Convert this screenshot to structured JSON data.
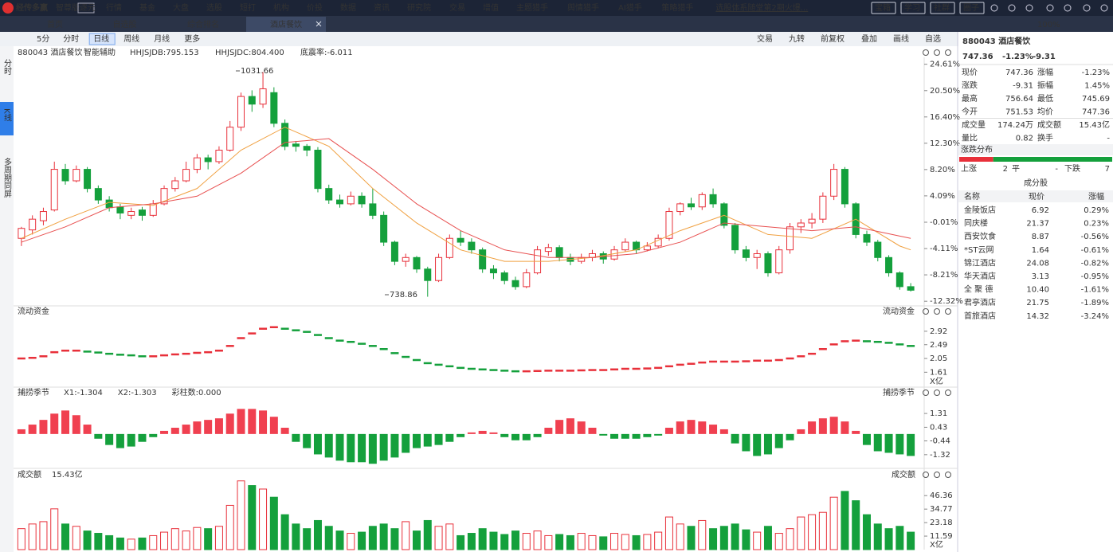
{
  "header": {
    "logo": "经传多赢",
    "edition": "智尊版",
    "badge": "逐元",
    "menu": [
      "行情",
      "基金",
      "大盘",
      "选股",
      "短打",
      "机构",
      "价投",
      "数据",
      "资讯",
      "研究院",
      "交易",
      "增值",
      "主题猎手",
      "舆情猎手",
      "AI猎手",
      "策略猎手"
    ],
    "promo": "选股体系随堂第2期火爆...",
    "buttons": [
      "宝箱",
      "学习",
      "社群",
      "圈子"
    ]
  },
  "tabs": {
    "items": [
      "首页",
      "自选股",
      "综合排名",
      "酒店餐饮"
    ],
    "active": 3,
    "zoom": "100%"
  },
  "toolbar": {
    "periods": [
      "5分",
      "分时",
      "日线",
      "周线",
      "月线",
      "更多"
    ],
    "active": 2,
    "tools": [
      "交易",
      "九转",
      "前复权",
      "叠加",
      "画线",
      "自选"
    ]
  },
  "side_tabs": {
    "items": [
      "分时",
      "K线",
      "多周期同屏"
    ],
    "active": 1
  },
  "chart_data": [
    {
      "type": "candlestick",
      "title": "880043 酒店餐饮",
      "indicators": [
        "智能辅助",
        "HHJSJDB:795.153",
        "HHJSJDC:804.400",
        "底震率:-6.011"
      ],
      "indicator_colors": [
        "#666666",
        "#e0a020",
        "#e84040",
        "#e0a020"
      ],
      "annotations": [
        "1031.66",
        "738.86"
      ],
      "up_color": "#e8303a",
      "down_color": "#14a03c",
      "ylim": [
        728,
        1051
      ],
      "yticks": [
        {
          "value": 1042,
          "label": "24.61%"
        },
        {
          "value": 1007.6,
          "label": "20.50%"
        },
        {
          "value": 973.3,
          "label": "16.40%"
        },
        {
          "value": 939,
          "label": "12.30%"
        },
        {
          "value": 904.7,
          "label": "8.20%"
        },
        {
          "value": 870.4,
          "label": "4.09%"
        },
        {
          "value": 836,
          "label": "-0.01%"
        },
        {
          "value": 801.7,
          "label": "-4.11%"
        },
        {
          "value": 767.4,
          "label": "-8.21%"
        },
        {
          "value": 733,
          "label": "-12.32%"
        }
      ],
      "candles": [
        [
          815,
          830,
          805,
          828
        ],
        [
          826,
          845,
          820,
          840
        ],
        [
          838,
          855,
          832,
          850
        ],
        [
          852,
          915,
          850,
          905
        ],
        [
          905,
          912,
          885,
          890
        ],
        [
          890,
          910,
          888,
          905
        ],
        [
          905,
          908,
          875,
          880
        ],
        [
          880,
          884,
          860,
          865
        ],
        [
          865,
          870,
          850,
          855
        ],
        [
          856,
          860,
          840,
          848
        ],
        [
          845,
          855,
          840,
          850
        ],
        [
          852,
          856,
          838,
          845
        ],
        [
          845,
          865,
          843,
          860
        ],
        [
          860,
          884,
          858,
          880
        ],
        [
          880,
          895,
          876,
          890
        ],
        [
          890,
          915,
          888,
          905
        ],
        [
          905,
          925,
          900,
          920
        ],
        [
          920,
          924,
          905,
          915
        ],
        [
          915,
          935,
          912,
          930
        ],
        [
          930,
          968,
          928,
          960
        ],
        [
          960,
          1005,
          955,
          1000
        ],
        [
          1000,
          1008,
          980,
          990
        ],
        [
          990,
          1031.66,
          985,
          1010
        ],
        [
          1005,
          1012,
          960,
          965
        ],
        [
          965,
          970,
          930,
          935
        ],
        [
          938,
          942,
          928,
          935
        ],
        [
          935,
          938,
          922,
          930
        ],
        [
          930,
          934,
          875,
          880
        ],
        [
          880,
          885,
          860,
          865
        ],
        [
          865,
          872,
          855,
          860
        ],
        [
          860,
          876,
          858,
          870
        ],
        [
          870,
          875,
          855,
          860
        ],
        [
          860,
          880,
          840,
          845
        ],
        [
          845,
          850,
          805,
          810
        ],
        [
          810,
          812,
          780,
          785
        ],
        [
          785,
          795,
          778,
          790
        ],
        [
          790,
          792,
          770,
          775
        ],
        [
          775,
          778,
          738.86,
          760
        ],
        [
          760,
          795,
          758,
          790
        ],
        [
          790,
          820,
          788,
          815
        ],
        [
          815,
          825,
          805,
          810
        ],
        [
          810,
          815,
          795,
          800
        ],
        [
          800,
          803,
          770,
          775
        ],
        [
          775,
          780,
          762,
          770
        ],
        [
          770,
          773,
          755,
          760
        ],
        [
          760,
          765,
          748,
          752
        ],
        [
          752,
          775,
          750,
          770
        ],
        [
          770,
          805,
          768,
          800
        ],
        [
          798,
          808,
          792,
          803
        ],
        [
          803,
          806,
          785,
          790
        ],
        [
          790,
          795,
          780,
          785
        ],
        [
          785,
          795,
          782,
          790
        ],
        [
          790,
          800,
          785,
          795
        ],
        [
          795,
          798,
          782,
          788
        ],
        [
          788,
          805,
          786,
          800
        ],
        [
          800,
          815,
          798,
          810
        ],
        [
          810,
          812,
          795,
          800
        ],
        [
          800,
          810,
          798,
          805
        ],
        [
          805,
          820,
          802,
          815
        ],
        [
          815,
          855,
          812,
          850
        ],
        [
          850,
          862,
          845,
          860
        ],
        [
          860,
          868,
          852,
          856
        ],
        [
          856,
          875,
          852,
          872
        ],
        [
          872,
          880,
          855,
          860
        ],
        [
          860,
          862,
          828,
          832
        ],
        [
          832,
          835,
          795,
          800
        ],
        [
          800,
          805,
          785,
          790
        ],
        [
          790,
          800,
          775,
          795
        ],
        [
          795,
          798,
          765,
          770
        ],
        [
          770,
          805,
          768,
          800
        ],
        [
          800,
          835,
          795,
          830
        ],
        [
          830,
          840,
          822,
          835
        ],
        [
          835,
          848,
          828,
          840
        ],
        [
          840,
          875,
          835,
          870
        ],
        [
          870,
          912,
          865,
          905
        ],
        [
          905,
          908,
          855,
          860
        ],
        [
          860,
          862,
          815,
          820
        ],
        [
          820,
          825,
          805,
          810
        ],
        [
          810,
          813,
          785,
          790
        ],
        [
          790,
          793,
          765,
          770
        ],
        [
          770,
          772,
          748,
          752
        ],
        [
          752,
          756.64,
          745.69,
          747.36
        ]
      ],
      "ma": [
        {
          "color": "#f0a040",
          "x": [
            0,
            4,
            8,
            12,
            16,
            20,
            24,
            28,
            32,
            36,
            40,
            44,
            48,
            52,
            56,
            60,
            64,
            68,
            72,
            76,
            80,
            81
          ],
          "values": [
            815,
            840,
            862,
            858,
            880,
            930,
            960,
            935,
            880,
            835,
            800,
            785,
            785,
            790,
            800,
            825,
            845,
            820,
            815,
            840,
            805,
            800
          ]
        },
        {
          "color": "#e85050",
          "x": [
            0,
            4,
            8,
            12,
            16,
            20,
            24,
            28,
            32,
            36,
            40,
            44,
            48,
            52,
            56,
            60,
            64,
            68,
            72,
            76,
            80,
            81
          ],
          "values": [
            810,
            830,
            855,
            860,
            870,
            900,
            940,
            945,
            905,
            860,
            825,
            800,
            790,
            790,
            795,
            810,
            835,
            830,
            825,
            830,
            818,
            815
          ]
        }
      ]
    },
    {
      "type": "dash",
      "title": "流动资金",
      "unit": "X亿",
      "ylim": [
        1.16,
        3.4
      ],
      "yticks": [
        2.92,
        2.49,
        2.05,
        1.61
      ],
      "up_color": "#e8303a",
      "down_color": "#14a03c",
      "values": [
        2.05,
        2.07,
        2.12,
        2.25,
        2.3,
        2.3,
        2.27,
        2.24,
        2.2,
        2.17,
        2.15,
        2.12,
        2.12,
        2.15,
        2.18,
        2.2,
        2.23,
        2.25,
        2.3,
        2.45,
        2.7,
        2.85,
        3.0,
        3.05,
        3.0,
        2.95,
        2.9,
        2.8,
        2.7,
        2.62,
        2.58,
        2.52,
        2.45,
        2.35,
        2.22,
        2.1,
        2.0,
        1.9,
        1.85,
        1.8,
        1.75,
        1.72,
        1.7,
        1.68,
        1.66,
        1.64,
        1.64,
        1.65,
        1.66,
        1.66,
        1.66,
        1.67,
        1.68,
        1.68,
        1.7,
        1.72,
        1.72,
        1.73,
        1.75,
        1.8,
        1.85,
        1.88,
        1.92,
        1.95,
        1.95,
        1.95,
        1.96,
        1.98,
        1.98,
        2.0,
        2.05,
        2.12,
        2.2,
        2.35,
        2.5,
        2.6,
        2.62,
        2.6,
        2.58,
        2.55,
        2.5,
        2.45
      ]
    },
    {
      "type": "bar",
      "title": "捕捞季节",
      "legend": [
        "X1:-1.304",
        "X2:-1.303",
        "彩柱数:0.000"
      ],
      "legend_colors": [
        "#e0a020",
        "#d040d0",
        "#14a03c"
      ],
      "ylim": [
        -2.04,
        2.28
      ],
      "yticks": [
        1.31,
        0.43,
        -0.44,
        -1.32
      ],
      "up_color": "#f04050",
      "down_color": "#14a03c",
      "values": [
        0.3,
        0.6,
        0.9,
        1.3,
        1.5,
        1.2,
        0.6,
        -0.3,
        -0.7,
        -0.9,
        -0.8,
        -0.5,
        -0.2,
        0.2,
        0.4,
        0.6,
        0.8,
        0.9,
        1.0,
        1.3,
        1.6,
        1.6,
        1.5,
        1.1,
        0.4,
        -0.5,
        -0.9,
        -1.3,
        -1.5,
        -1.7,
        -1.8,
        -1.8,
        -1.9,
        -1.7,
        -1.5,
        -1.2,
        -0.9,
        -0.8,
        -0.7,
        -0.5,
        -0.2,
        0.1,
        0.2,
        0.1,
        -0.2,
        -0.4,
        -0.4,
        -0.2,
        0.4,
        0.9,
        1.0,
        0.8,
        0.4,
        -0.1,
        -0.3,
        -0.3,
        -0.3,
        -0.2,
        -0.1,
        0.4,
        0.8,
        0.9,
        0.8,
        0.6,
        0.3,
        -0.6,
        -1.1,
        -1.4,
        -1.3,
        -0.9,
        -0.4,
        0.3,
        0.8,
        1.0,
        1.1,
        0.8,
        0.2,
        -0.7,
        -1.1,
        -1.2,
        -1.3,
        -1.4
      ]
    },
    {
      "type": "volume",
      "title": "成交额",
      "subtitle": "15.43亿",
      "unit": "X亿",
      "ylim": [
        0,
        59.5
      ],
      "yticks": [
        46.36,
        34.77,
        23.18,
        11.59
      ],
      "up_color": "#e8303a",
      "down_color": "#14a03c",
      "values": [
        18,
        22,
        24,
        35,
        22,
        20,
        16,
        14,
        12,
        10,
        9,
        10,
        12,
        15,
        18,
        16,
        19,
        18,
        20,
        38,
        59,
        55,
        52,
        45,
        30,
        22,
        18,
        25,
        20,
        16,
        14,
        15,
        20,
        22,
        18,
        24,
        16,
        25,
        20,
        22,
        12,
        14,
        18,
        15,
        13,
        16,
        14,
        16,
        12,
        13,
        12,
        14,
        12,
        11,
        14,
        13,
        12,
        13,
        15,
        28,
        22,
        20,
        25,
        18,
        20,
        22,
        17,
        15,
        20,
        14,
        18,
        28,
        30,
        32,
        45,
        50,
        42,
        30,
        22,
        18,
        20,
        15
      ]
    }
  ],
  "quote": {
    "code_name": "880043 酒店餐饮",
    "price": "747.36",
    "change_pct": "-1.23%",
    "change": "-9.31",
    "color": "#14a03c",
    "rows": [
      [
        {
          "label": "现价",
          "value": "747.36",
          "color": "#14a03c"
        },
        {
          "label": "涨幅",
          "value": "-1.23%",
          "color": "#14a03c"
        }
      ],
      [
        {
          "label": "涨跌",
          "value": "-9.31",
          "color": "#14a03c"
        },
        {
          "label": "振幅",
          "value": "1.45%",
          "color": "#222222"
        }
      ],
      [
        {
          "label": "最高",
          "value": "756.64",
          "color": "#e8303a"
        },
        {
          "label": "最低",
          "value": "745.69",
          "color": "#14a03c"
        }
      ],
      [
        {
          "label": "今开",
          "value": "751.53",
          "color": "#14a03c"
        },
        {
          "label": "均价",
          "value": "747.36",
          "color": "#14a03c"
        }
      ],
      [
        {
          "label": "成交量",
          "value": "174.24万",
          "color": "#222222"
        },
        {
          "label": "成交额",
          "value": "15.43亿",
          "color": "#222222"
        }
      ],
      [
        {
          "label": "量比",
          "value": "0.82",
          "color": "#222222"
        },
        {
          "label": "换手",
          "value": "-",
          "color": "#222222"
        }
      ]
    ],
    "distribution": {
      "title": "涨跌分布",
      "up_label": "上涨",
      "up": 2,
      "flat_label": "平",
      "flat": "-",
      "down_label": "下跌",
      "down": 7
    },
    "constituents": {
      "title": "成分股",
      "columns": [
        "名称",
        "现价",
        "涨幅"
      ],
      "rows": [
        [
          "金陵饭店",
          "6.92",
          "0.29%"
        ],
        [
          "同庆楼",
          "21.37",
          "0.23%"
        ],
        [
          "西安饮食",
          "8.87",
          "-0.56%"
        ],
        [
          "*ST云网",
          "1.64",
          "-0.61%"
        ],
        [
          "锦江酒店",
          "24.08",
          "-0.82%"
        ],
        [
          "华天酒店",
          "3.13",
          "-0.95%"
        ],
        [
          "全 聚 德",
          "10.40",
          "-1.61%"
        ],
        [
          "君亭酒店",
          "21.75",
          "-1.89%"
        ],
        [
          "首旅酒店",
          "14.32",
          "-3.24%"
        ]
      ]
    }
  }
}
